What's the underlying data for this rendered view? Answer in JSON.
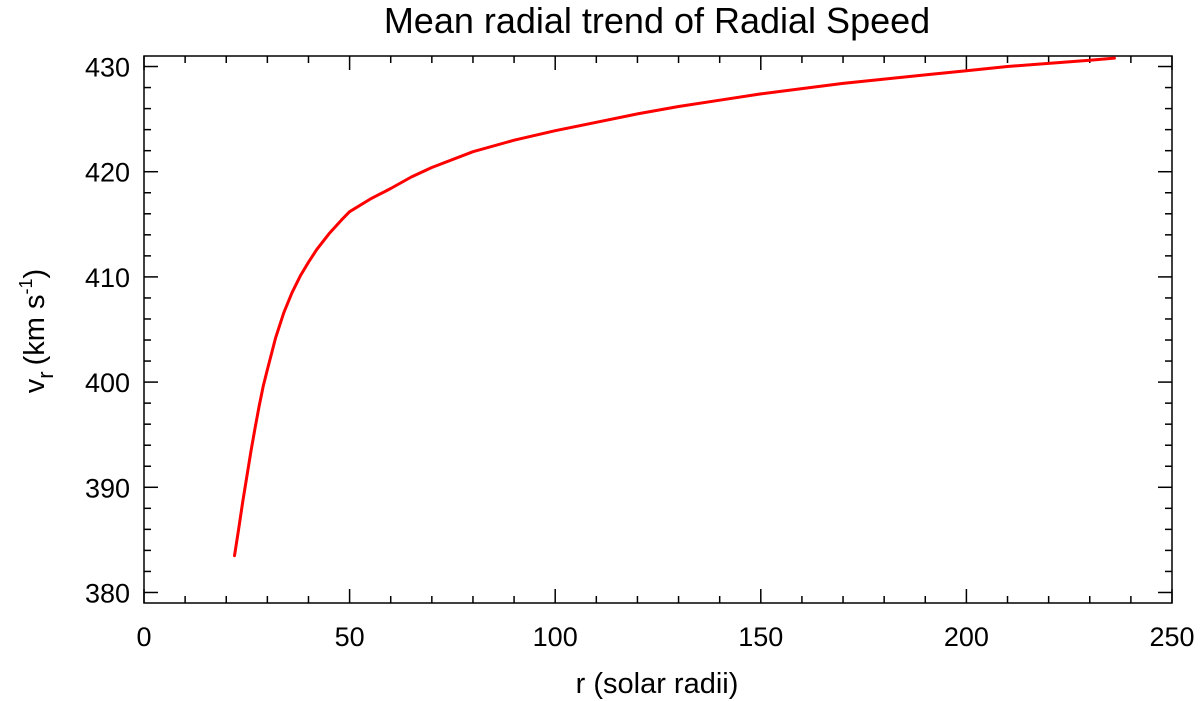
{
  "chart_data": {
    "type": "line",
    "title": "Mean radial trend of Radial Speed",
    "xlabel": "r (solar radii)",
    "ylabel": {
      "main": "v",
      "subscript": "r",
      "units_prefix": "(km s",
      "units_superscript": "-1",
      "units_suffix": ")"
    },
    "xlim": [
      0,
      250
    ],
    "ylim": [
      379,
      431
    ],
    "xticks": [
      0,
      50,
      100,
      150,
      200,
      250
    ],
    "yticks": [
      380,
      390,
      400,
      410,
      420,
      430
    ],
    "xminor_step": 10,
    "yminor_step": 2,
    "grid": false,
    "colors": {
      "series": "#ff0000",
      "axes": "#000000"
    },
    "series": [
      {
        "x": [
          22,
          23,
          24,
          25,
          26,
          27,
          28,
          29,
          30,
          32,
          34,
          36,
          38,
          40,
          42,
          45,
          48,
          50,
          55,
          60,
          65,
          70,
          80,
          90,
          100,
          110,
          120,
          130,
          140,
          150,
          160,
          170,
          180,
          190,
          200,
          210,
          220,
          230,
          236
        ],
        "y": [
          383.5,
          386.0,
          388.6,
          391.0,
          393.4,
          395.6,
          397.7,
          399.6,
          401.2,
          404.2,
          406.6,
          408.5,
          410.1,
          411.4,
          412.6,
          414.1,
          415.4,
          416.2,
          417.4,
          418.4,
          419.5,
          420.4,
          421.9,
          423.0,
          423.9,
          424.7,
          425.5,
          426.2,
          426.8,
          427.4,
          427.9,
          428.4,
          428.8,
          429.2,
          429.6,
          430.0,
          430.3,
          430.6,
          430.8
        ]
      }
    ]
  }
}
